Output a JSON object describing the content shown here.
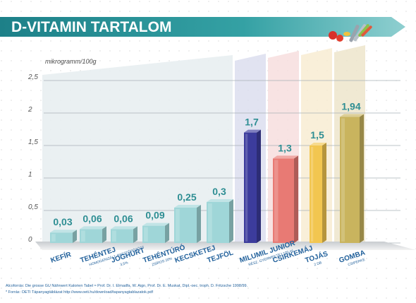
{
  "title": "D-VITAMIN TARTALOM",
  "chart_data": {
    "type": "bar",
    "title": "D-VITAMIN TARTALOM",
    "ylabel": "mikrogramm/100g",
    "xlabel": "",
    "ylim": [
      0,
      2.5
    ],
    "yticks": [
      "0",
      "0,5",
      "1",
      "1,5",
      "2",
      "2,5"
    ],
    "categories": [
      "KEFÍR",
      "TEHÉNTEJ",
      "JOGHURT",
      "TEHÉNTÚRÓ",
      "KECSKETEJ",
      "TEJFÖL",
      "MILUMIL JUNIOR",
      "CSIRKEMÁJ",
      "TOJÁS",
      "GOMBA"
    ],
    "category_notes": [
      "",
      "HOMOGENIZÁLT, PASZTŐRÖZÖTT",
      "3,5%",
      "ZSÍROS 20%",
      "",
      "",
      "RÉSZ. GYERMEKTEJ 100 ml",
      "",
      "2 DB",
      "CSIPERKE"
    ],
    "values": [
      0.03,
      0.06,
      0.06,
      0.09,
      0.25,
      0.3,
      1.7,
      1.3,
      1.5,
      1.94
    ],
    "value_labels": [
      "0,03",
      "0,06",
      "0,06",
      "0,09",
      "0,25",
      "0,3",
      "1,7",
      "1,3",
      "1,5",
      "1,94"
    ],
    "grid": true,
    "colors": {
      "title_band": "#2a8f94",
      "dairy": "#9fd6d8",
      "milumil": "#3c3c9c",
      "liver": "#e87a74",
      "egg": "#f2c650",
      "mushroom": "#c9b45e",
      "value_text": "#2e8e93",
      "category_text": "#1f5f9a"
    }
  },
  "sources": [
    "Alcoforrás: Die grosse GU Nährwert Kalorien Tabel ≈ Prof. Dr. I. Elmadfa, W. Aign, Prof. Dr. E. Muskat, Dipl.-oec. troph. D. Fritzsche 1998/99.",
    "* Forrás: OETI Tápanyagtáblázat  http://www.oeti.hu/download/tapanyagtablazatok.pdf"
  ]
}
